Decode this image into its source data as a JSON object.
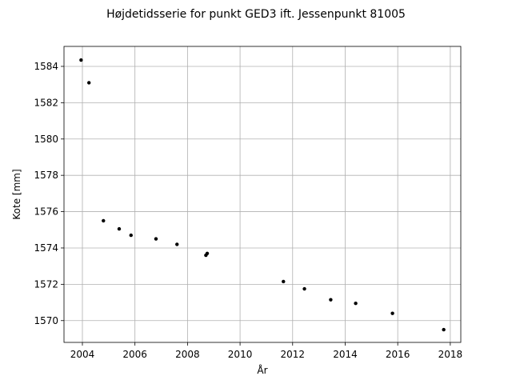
{
  "chart_data": {
    "type": "scatter",
    "title": "Højdetidsserie for punkt GED3 ift. Jessenpunkt 81005",
    "xlabel": "År",
    "ylabel": "Kote [mm]",
    "xlim": [
      2003.3,
      2018.4
    ],
    "ylim": [
      1568.8,
      1585.1
    ],
    "xticks": [
      2004,
      2006,
      2008,
      2010,
      2012,
      2014,
      2016,
      2018
    ],
    "yticks": [
      1570,
      1572,
      1574,
      1576,
      1578,
      1580,
      1582,
      1584
    ],
    "grid": true,
    "marker_color": "#000000",
    "points": [
      {
        "x": 2003.95,
        "y": 1584.35
      },
      {
        "x": 2004.25,
        "y": 1583.1
      },
      {
        "x": 2004.8,
        "y": 1575.5
      },
      {
        "x": 2005.4,
        "y": 1575.05
      },
      {
        "x": 2005.85,
        "y": 1574.7
      },
      {
        "x": 2006.8,
        "y": 1574.5
      },
      {
        "x": 2007.6,
        "y": 1574.2
      },
      {
        "x": 2008.7,
        "y": 1573.6
      },
      {
        "x": 2008.75,
        "y": 1573.7
      },
      {
        "x": 2011.65,
        "y": 1572.15
      },
      {
        "x": 2012.45,
        "y": 1571.75
      },
      {
        "x": 2013.45,
        "y": 1571.15
      },
      {
        "x": 2014.4,
        "y": 1570.95
      },
      {
        "x": 2015.8,
        "y": 1570.4
      },
      {
        "x": 2017.75,
        "y": 1569.5
      }
    ]
  }
}
